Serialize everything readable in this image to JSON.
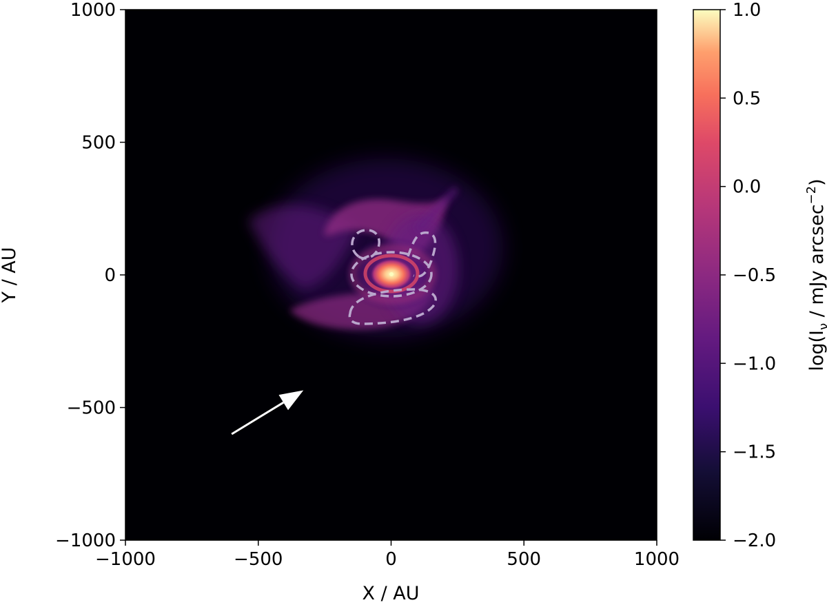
{
  "chart_data": {
    "type": "heatmap",
    "title": "",
    "xlabel": "X / AU",
    "ylabel": "Y / AU",
    "xlim": [
      -1000,
      1000
    ],
    "ylim": [
      -1000,
      1000
    ],
    "x_ticks": [
      -1000,
      -500,
      0,
      500,
      1000
    ],
    "y_ticks": [
      -1000,
      -500,
      0,
      500,
      1000
    ],
    "x_tick_labels": [
      "−1000",
      "−500",
      "0",
      "500",
      "1000"
    ],
    "y_tick_labels": [
      "−1000",
      "−500",
      "0",
      "500",
      "1000"
    ],
    "grid": false,
    "colormap": "magma",
    "colorbar": {
      "label_main": "log(I",
      "label_sub": "ν",
      "label_mid": " / mJy arcsec",
      "label_sup": "−2",
      "label_end": ")",
      "range": [
        -2.0,
        1.0
      ],
      "ticks": [
        1.0,
        0.5,
        0.0,
        -0.5,
        -1.0,
        -1.5,
        -2.0
      ],
      "tick_labels": [
        "1.0",
        "0.5",
        "0.0",
        "−0.5",
        "−1.0",
        "−1.5",
        "−2.0"
      ]
    },
    "features": {
      "central_source_au": [
        0,
        0
      ],
      "arrow_from_au": [
        -600,
        -600
      ],
      "arrow_to_au": [
        -330,
        -435
      ],
      "contour_style": "dashed",
      "contour_color": "#b9a6cc"
    },
    "colors": {
      "background": "#000004",
      "arrow": "#ffffff"
    }
  }
}
